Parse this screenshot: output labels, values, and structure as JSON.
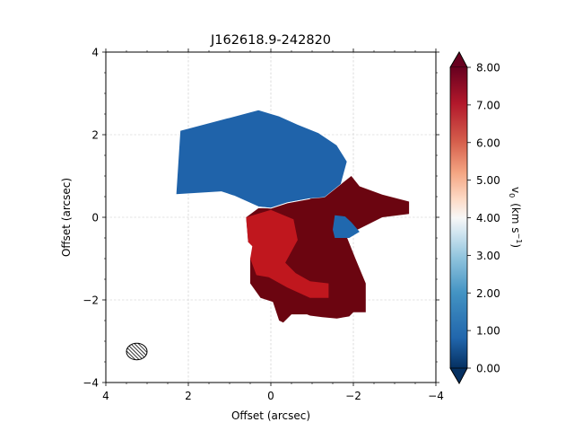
{
  "chart_data": {
    "type": "heatmap",
    "title": "J162618.9-242820",
    "xlabel": "Offset (arcsec)",
    "ylabel": "Offset (arcsec)",
    "xlim": [
      4,
      -4
    ],
    "ylim": [
      -4,
      4
    ],
    "x_ticks": [
      4,
      2,
      0,
      -2,
      -4
    ],
    "y_ticks": [
      4,
      2,
      0,
      -2,
      -4
    ],
    "x_tick_labels": [
      "4",
      "2",
      "0",
      "−2",
      "−4"
    ],
    "y_tick_labels": [
      "4",
      "2",
      "0",
      "−2",
      "−4"
    ],
    "grid": true,
    "colorbar": {
      "label_main": "v",
      "label_sub": "0",
      "label_units": "(km s",
      "label_exp": "−1",
      "label_close": ")",
      "vmin": 0.0,
      "vmax": 8.0,
      "ticks": [
        0,
        1,
        2,
        3,
        4,
        5,
        6,
        7,
        8
      ],
      "tick_labels": [
        "0.00",
        "1.00",
        "2.00",
        "3.00",
        "4.00",
        "5.00",
        "6.00",
        "7.00",
        "8.00"
      ],
      "colormap": "RdBu_r",
      "extend": "both"
    },
    "regions": [
      {
        "name": "blueshifted lobe",
        "velocity": 1.4,
        "color": "#1f63aa",
        "outline": [
          [
            2.2,
            2.1
          ],
          [
            0.3,
            2.6
          ],
          [
            -0.2,
            2.45
          ],
          [
            -0.65,
            2.25
          ],
          [
            -1.15,
            2.05
          ],
          [
            -1.6,
            1.75
          ],
          [
            -1.85,
            1.35
          ],
          [
            -1.7,
            0.8
          ],
          [
            -1.3,
            0.48
          ],
          [
            -0.95,
            0.45
          ],
          [
            -0.4,
            0.35
          ],
          [
            0.0,
            0.22
          ],
          [
            0.3,
            0.25
          ],
          [
            0.9,
            0.52
          ],
          [
            1.2,
            0.62
          ],
          [
            2.3,
            0.55
          ]
        ]
      },
      {
        "name": "redshifted lobe",
        "velocity": 8.0,
        "color": "#6b0510",
        "outline": [
          [
            0.0,
            0.22
          ],
          [
            -0.4,
            0.35
          ],
          [
            -0.95,
            0.45
          ],
          [
            -1.3,
            0.48
          ],
          [
            -1.7,
            0.8
          ],
          [
            -1.95,
            1.0
          ],
          [
            -2.15,
            0.75
          ],
          [
            -2.7,
            0.55
          ],
          [
            -3.35,
            0.38
          ],
          [
            -3.35,
            0.08
          ],
          [
            -2.7,
            0.0
          ],
          [
            -2.1,
            -0.3
          ],
          [
            -1.85,
            -0.5
          ],
          [
            -2.05,
            -1.0
          ],
          [
            -2.3,
            -1.6
          ],
          [
            -2.3,
            -2.3
          ],
          [
            -2.0,
            -2.3
          ],
          [
            -1.9,
            -2.4
          ],
          [
            -1.6,
            -2.45
          ],
          [
            -1.25,
            -2.42
          ],
          [
            -0.95,
            -2.38
          ],
          [
            -0.7,
            -2.28
          ],
          [
            -0.9,
            -2.35
          ],
          [
            -0.5,
            -2.35
          ],
          [
            -0.3,
            -2.55
          ],
          [
            -0.2,
            -2.5
          ],
          [
            -0.05,
            -2.05
          ],
          [
            0.25,
            -1.95
          ],
          [
            0.5,
            -1.6
          ],
          [
            0.5,
            -1.0
          ],
          [
            0.4,
            -0.7
          ],
          [
            0.55,
            -0.6
          ],
          [
            0.6,
            0.0
          ],
          [
            0.3,
            0.22
          ]
        ]
      },
      {
        "name": "red band near origin",
        "velocity": 6.9,
        "color": "#c0171e",
        "outline": [
          [
            0.6,
            0.0
          ],
          [
            0.0,
            0.18
          ],
          [
            -0.55,
            -0.05
          ],
          [
            -0.65,
            -0.55
          ],
          [
            -0.35,
            -1.1
          ],
          [
            -0.6,
            -1.35
          ],
          [
            -0.95,
            -1.55
          ],
          [
            -1.4,
            -1.6
          ],
          [
            -1.4,
            -1.95
          ],
          [
            -0.95,
            -1.95
          ],
          [
            -0.4,
            -1.7
          ],
          [
            0.05,
            -1.45
          ],
          [
            0.35,
            -1.4
          ],
          [
            0.5,
            -1.0
          ],
          [
            0.45,
            -0.7
          ],
          [
            0.55,
            -0.6
          ]
        ]
      },
      {
        "name": "small blue patch",
        "velocity": 1.6,
        "color": "#2068ae",
        "outline": [
          [
            -1.55,
            0.05
          ],
          [
            -1.8,
            0.02
          ],
          [
            -1.95,
            -0.12
          ],
          [
            -2.15,
            -0.35
          ],
          [
            -1.9,
            -0.5
          ],
          [
            -1.55,
            -0.5
          ],
          [
            -1.5,
            -0.3
          ]
        ]
      }
    ],
    "beam": {
      "x": 3.25,
      "y": -3.25,
      "major": 0.5,
      "minor": 0.4
    }
  }
}
